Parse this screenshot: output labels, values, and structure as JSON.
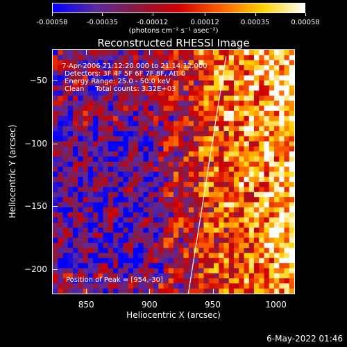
{
  "colorbar": {
    "ticks": [
      "-0.00058",
      "-0.00035",
      "-0.00012",
      "0.00012",
      "0.00035",
      "0.00058"
    ],
    "tick_values": [
      -0.00058,
      -0.00035,
      -0.00012,
      0.00012,
      0.00035,
      0.00058
    ],
    "units": "(photons cm⁻² s⁻¹ asec⁻²)",
    "colors": [
      "#0000ff",
      "#5a2aa0",
      "#8a1a40",
      "#d00000",
      "#ff6000",
      "#ffd000",
      "#ffffff"
    ]
  },
  "chart_data": {
    "type": "heatmap",
    "title": "Reconstructed RHESSI Image",
    "xlabel": "Heliocentric X (arcsec)",
    "ylabel": "Heliocentric Y (arcsec)",
    "xlim": [
      823,
      1015
    ],
    "ylim": [
      -220,
      -25
    ],
    "x_ticks": [
      850,
      900,
      950,
      1000
    ],
    "y_ticks": [
      -50,
      -100,
      -150,
      -200
    ],
    "limb_line": {
      "x": [
        930,
        960
      ],
      "y": [
        -220,
        -30
      ]
    },
    "peak": {
      "x": 954,
      "y": -30
    },
    "value_range": [
      -0.00058,
      0.00058
    ]
  },
  "annotations": {
    "time_range": " 7-Apr-2006 21:12:20.000 to 21:14:12.000",
    "detectors": "Detectors: 3F 4F 5F 6F 7F 8F, Att 0",
    "energy": "Energy Range: 25.0 - 50.0 keV",
    "clean": "Clean     Total counts: 3.32E+03",
    "peak": "Position of Peak = [954,-30]"
  },
  "timestamp": "6-May-2022 01:46"
}
